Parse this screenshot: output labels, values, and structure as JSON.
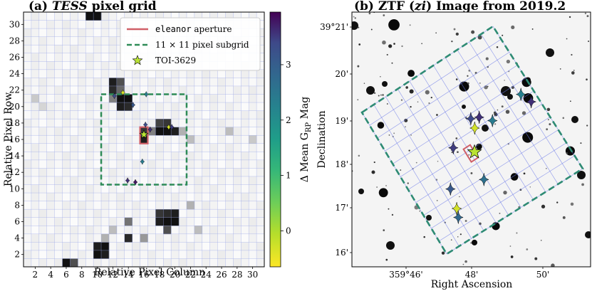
{
  "chart_data": [
    {
      "type": "heatmap",
      "panel": "(a)",
      "title_prefix": "(a) ",
      "title_italic": "TESS",
      "title_suffix": " pixel grid",
      "xlabel": "Relative Pixel Column",
      "ylabel": "Relative Pixel Row",
      "xlim": [
        0.5,
        31.5
      ],
      "ylim": [
        0.5,
        31.5
      ],
      "xticks": [
        2,
        4,
        6,
        8,
        10,
        12,
        14,
        16,
        18,
        20,
        22,
        24,
        26,
        28,
        30
      ],
      "yticks": [
        2,
        4,
        6,
        8,
        10,
        12,
        14,
        16,
        18,
        20,
        22,
        24,
        26,
        28,
        30
      ],
      "grid": true,
      "bright_pixels": [
        {
          "col": 9,
          "row": 31,
          "level": 0.95
        },
        {
          "col": 10,
          "row": 31,
          "level": 0.95
        },
        {
          "col": 12,
          "row": 23,
          "level": 0.9
        },
        {
          "col": 13,
          "row": 23,
          "level": 0.7
        },
        {
          "col": 12,
          "row": 22,
          "level": 0.85
        },
        {
          "col": 13,
          "row": 22,
          "level": 0.6
        },
        {
          "col": 13,
          "row": 21,
          "level": 0.95
        },
        {
          "col": 14,
          "row": 21,
          "level": 0.95
        },
        {
          "col": 12,
          "row": 21,
          "level": 0.5
        },
        {
          "col": 13,
          "row": 20,
          "level": 0.9
        },
        {
          "col": 14,
          "row": 20,
          "level": 0.85
        },
        {
          "col": 16,
          "row": 17,
          "level": 0.8
        },
        {
          "col": 16,
          "row": 16,
          "level": 0.9
        },
        {
          "col": 17,
          "row": 17,
          "level": 0.5
        },
        {
          "col": 18,
          "row": 18,
          "level": 0.75
        },
        {
          "col": 19,
          "row": 18,
          "level": 0.8
        },
        {
          "col": 18,
          "row": 17,
          "level": 0.95
        },
        {
          "col": 19,
          "row": 17,
          "level": 0.95
        },
        {
          "col": 20,
          "row": 17,
          "level": 0.9
        },
        {
          "col": 27,
          "row": 17,
          "level": 0.25
        },
        {
          "col": 30,
          "row": 16,
          "level": 0.2
        },
        {
          "col": 18,
          "row": 7,
          "level": 0.8
        },
        {
          "col": 19,
          "row": 7,
          "level": 0.85
        },
        {
          "col": 20,
          "row": 7,
          "level": 0.9
        },
        {
          "col": 18,
          "row": 6,
          "level": 0.9
        },
        {
          "col": 19,
          "row": 6,
          "level": 0.95
        },
        {
          "col": 20,
          "row": 6,
          "level": 0.95
        },
        {
          "col": 19,
          "row": 5,
          "level": 0.7
        },
        {
          "col": 14,
          "row": 6,
          "level": 0.55
        },
        {
          "col": 14,
          "row": 4,
          "level": 0.85
        },
        {
          "col": 10,
          "row": 3,
          "level": 0.9
        },
        {
          "col": 11,
          "row": 3,
          "level": 0.95
        },
        {
          "col": 10,
          "row": 2,
          "level": 0.95
        },
        {
          "col": 11,
          "row": 2,
          "level": 0.9
        },
        {
          "col": 6,
          "row": 1,
          "level": 0.95
        },
        {
          "col": 7,
          "row": 1,
          "level": 0.7
        },
        {
          "col": 16,
          "row": 4,
          "level": 0.4
        },
        {
          "col": 22,
          "row": 8,
          "level": 0.3
        },
        {
          "col": 23,
          "row": 5,
          "level": 0.25
        },
        {
          "col": 2,
          "row": 21,
          "level": 0.2
        },
        {
          "col": 3,
          "row": 20,
          "level": 0.15
        },
        {
          "col": 21,
          "row": 17,
          "level": 0.3
        },
        {
          "col": 22,
          "row": 16,
          "level": 0.25
        },
        {
          "col": 11,
          "row": 4,
          "level": 0.3
        },
        {
          "col": 12,
          "row": 5,
          "level": 0.25
        }
      ],
      "stars": [
        {
          "col": 12.2,
          "row": 21.3,
          "mag": 3.4
        },
        {
          "col": 13.3,
          "row": 21.7,
          "mag": -0.3
        },
        {
          "col": 14.6,
          "row": 20.2,
          "mag": 3.1
        },
        {
          "col": 16.3,
          "row": 21.5,
          "mag": 2.3
        },
        {
          "col": 16.2,
          "row": 17.8,
          "mag": 3.3
        },
        {
          "col": 16.8,
          "row": 17.2,
          "mag": 3.6
        },
        {
          "col": 16.0,
          "row": 16.6,
          "mag": -0.4
        },
        {
          "col": 19.2,
          "row": 17.5,
          "mag": -0.3
        },
        {
          "col": 19.6,
          "row": 17.5,
          "mag": 3.5
        },
        {
          "col": 15.8,
          "row": 13.3,
          "mag": 2.4
        },
        {
          "col": 13.9,
          "row": 11.0,
          "mag": 3.6
        },
        {
          "col": 14.9,
          "row": 10.8,
          "mag": 3.8
        }
      ],
      "target": {
        "col": 16.0,
        "row": 16.6
      },
      "aperture": {
        "col0": 15.5,
        "col1": 16.5,
        "row0": 15.5,
        "row1": 17.5
      },
      "subgrid": {
        "col0": 10.5,
        "col1": 21.5,
        "row0": 10.5,
        "row1": 21.5
      },
      "legend": [
        {
          "kind": "aperture",
          "label": "eleanor",
          "label_suffix": " aperture"
        },
        {
          "kind": "subgrid",
          "label": "11 × 11 pixel subgrid"
        },
        {
          "kind": "target",
          "label": "TOI-3629"
        }
      ],
      "colorbar": {
        "label_prefix": "Δ Mean G",
        "label_sub": "RP",
        "label_suffix": " Mag",
        "ticks": [
          0,
          1,
          2,
          3
        ],
        "range": [
          -0.65,
          3.95
        ]
      }
    },
    {
      "type": "scatter",
      "panel": "(b)",
      "title_prefix": "(b) ZTF (",
      "title_italic": "zi",
      "title_suffix": ") Image from 2019.2",
      "xlabel": "Right Ascension",
      "ylabel": "Declination",
      "xtick_labels": [
        "359°46'",
        "48'",
        "50'"
      ],
      "ytick_labels": [
        "39°21'",
        "20'",
        "19'",
        "18'",
        "17'",
        "16'"
      ],
      "stars": [
        {
          "u": 0.44,
          "v": 0.74,
          "mag": 2.6
        },
        {
          "u": 0.56,
          "v": 0.45,
          "mag": -0.3
        },
        {
          "u": 0.62,
          "v": 0.41,
          "mag": 3.6
        },
        {
          "u": 0.57,
          "v": 0.39,
          "mag": 3.4
        },
        {
          "u": 0.2,
          "v": 0.8,
          "mag": -0.3
        },
        {
          "u": 0.18,
          "v": 0.85,
          "mag": 2.8
        },
        {
          "u": 0.23,
          "v": 0.68,
          "mag": 3.1
        },
        {
          "u": 0.38,
          "v": 0.48,
          "mag": 3.5
        },
        {
          "u": 0.68,
          "v": 0.47,
          "mag": 2.4
        },
        {
          "u": 0.92,
          "v": 0.43,
          "mag": 2.3
        },
        {
          "u": 0.95,
          "v": 0.5,
          "mag": 3.6
        }
      ],
      "target": {
        "u": 0.48,
        "v": 0.57
      },
      "aperture": {
        "u0": 0.43,
        "u1": 0.48,
        "v0": 0.52,
        "v1": 0.61
      }
    }
  ]
}
